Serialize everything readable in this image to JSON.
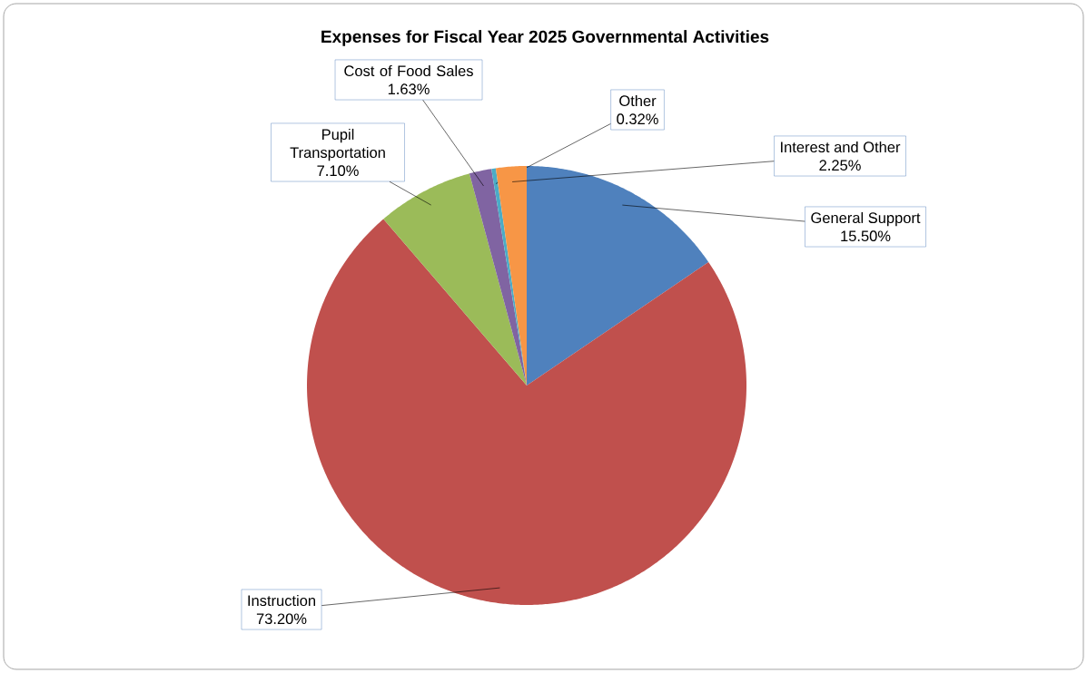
{
  "chart_data": {
    "type": "pie",
    "title": "Expenses for Fiscal Year 2025 Governmental Activities",
    "categories": [
      "General Support",
      "Instruction",
      "Pupil Transportation",
      "Cost of Food Sales",
      "Other",
      "Interest and Other"
    ],
    "values": [
      15.5,
      73.2,
      7.1,
      1.63,
      0.32,
      2.25
    ],
    "colors": [
      "#4f81bd",
      "#c0504d",
      "#9bbb59",
      "#8064a2",
      "#4bacc6",
      "#f79646"
    ],
    "value_labels": [
      "15.50%",
      "73.20%",
      "7.10%",
      "1.63%",
      "0.32%",
      "2.25%"
    ]
  }
}
